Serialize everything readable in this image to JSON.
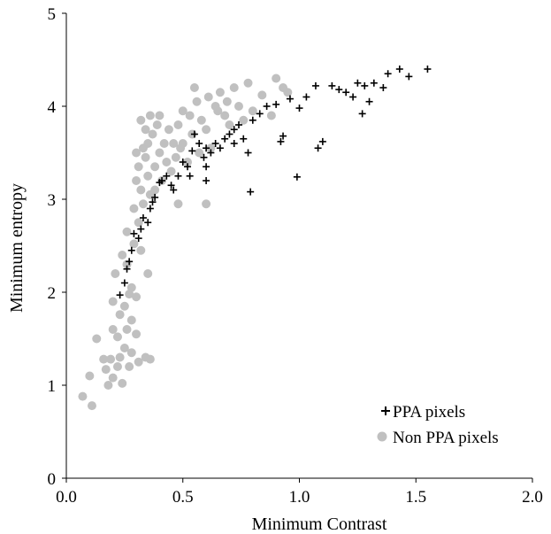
{
  "chart_data": {
    "type": "scatter",
    "title": "",
    "xlabel": "Minimum Contrast",
    "ylabel": "Minimum entropy",
    "xlim": [
      0,
      2
    ],
    "ylim": [
      0,
      5
    ],
    "xticks": [
      "0.0",
      "0.5",
      "1.0",
      "1.5",
      "2.0"
    ],
    "yticks": [
      "0",
      "1",
      "2",
      "3",
      "4",
      "5"
    ],
    "grid": false,
    "legend_position": "bottom-right",
    "series": [
      {
        "name": "Non PPA pixels",
        "marker": "circle",
        "color": "#c0c0c0",
        "points": [
          [
            0.07,
            0.88
          ],
          [
            0.11,
            0.78
          ],
          [
            0.1,
            1.1
          ],
          [
            0.13,
            1.5
          ],
          [
            0.16,
            1.28
          ],
          [
            0.17,
            1.17
          ],
          [
            0.18,
            1.0
          ],
          [
            0.19,
            1.28
          ],
          [
            0.2,
            1.6
          ],
          [
            0.2,
            1.9
          ],
          [
            0.2,
            1.08
          ],
          [
            0.21,
            2.2
          ],
          [
            0.22,
            1.52
          ],
          [
            0.23,
            1.3
          ],
          [
            0.23,
            1.76
          ],
          [
            0.24,
            1.02
          ],
          [
            0.25,
            1.85
          ],
          [
            0.25,
            1.4
          ],
          [
            0.26,
            1.6
          ],
          [
            0.26,
            2.3
          ],
          [
            0.27,
            1.2
          ],
          [
            0.27,
            1.98
          ],
          [
            0.28,
            1.7
          ],
          [
            0.28,
            2.05
          ],
          [
            0.29,
            2.52
          ],
          [
            0.29,
            2.9
          ],
          [
            0.3,
            3.2
          ],
          [
            0.3,
            3.5
          ],
          [
            0.3,
            1.55
          ],
          [
            0.31,
            1.25
          ],
          [
            0.31,
            2.75
          ],
          [
            0.31,
            3.35
          ],
          [
            0.32,
            3.1
          ],
          [
            0.32,
            3.85
          ],
          [
            0.33,
            2.95
          ],
          [
            0.33,
            3.55
          ],
          [
            0.34,
            3.45
          ],
          [
            0.34,
            3.75
          ],
          [
            0.35,
            3.6
          ],
          [
            0.35,
            3.25
          ],
          [
            0.36,
            3.9
          ],
          [
            0.36,
            3.05
          ],
          [
            0.37,
            3.7
          ],
          [
            0.38,
            3.35
          ],
          [
            0.38,
            3.1
          ],
          [
            0.39,
            3.8
          ],
          [
            0.4,
            3.5
          ],
          [
            0.4,
            3.9
          ],
          [
            0.41,
            3.2
          ],
          [
            0.42,
            3.6
          ],
          [
            0.43,
            3.4
          ],
          [
            0.44,
            3.75
          ],
          [
            0.45,
            3.3
          ],
          [
            0.46,
            3.6
          ],
          [
            0.47,
            3.45
          ],
          [
            0.48,
            3.8
          ],
          [
            0.49,
            3.55
          ],
          [
            0.5,
            3.95
          ],
          [
            0.5,
            3.6
          ],
          [
            0.52,
            3.4
          ],
          [
            0.53,
            3.9
          ],
          [
            0.54,
            3.7
          ],
          [
            0.55,
            4.2
          ],
          [
            0.56,
            4.05
          ],
          [
            0.57,
            3.5
          ],
          [
            0.58,
            3.85
          ],
          [
            0.6,
            3.75
          ],
          [
            0.61,
            4.1
          ],
          [
            0.62,
            3.55
          ],
          [
            0.64,
            4.0
          ],
          [
            0.65,
            3.95
          ],
          [
            0.66,
            4.15
          ],
          [
            0.68,
            3.9
          ],
          [
            0.69,
            4.05
          ],
          [
            0.7,
            3.8
          ],
          [
            0.72,
            4.2
          ],
          [
            0.74,
            4.0
          ],
          [
            0.76,
            3.85
          ],
          [
            0.78,
            4.25
          ],
          [
            0.8,
            3.95
          ],
          [
            0.84,
            4.12
          ],
          [
            0.88,
            3.9
          ],
          [
            0.9,
            4.3
          ],
          [
            0.93,
            4.2
          ],
          [
            0.95,
            4.15
          ],
          [
            0.3,
            1.95
          ],
          [
            0.24,
            2.4
          ],
          [
            0.28,
            1.35
          ],
          [
            0.34,
            1.3
          ],
          [
            0.36,
            1.28
          ],
          [
            0.22,
            1.2
          ],
          [
            0.26,
            2.65
          ],
          [
            0.32,
            2.45
          ],
          [
            0.35,
            2.2
          ],
          [
            0.48,
            2.95
          ],
          [
            0.6,
            2.95
          ]
        ]
      },
      {
        "name": "PPA pixels",
        "marker": "plus",
        "color": "#000000",
        "points": [
          [
            0.23,
            1.97
          ],
          [
            0.25,
            2.1
          ],
          [
            0.26,
            2.25
          ],
          [
            0.27,
            2.33
          ],
          [
            0.28,
            2.45
          ],
          [
            0.29,
            2.63
          ],
          [
            0.31,
            2.58
          ],
          [
            0.32,
            2.68
          ],
          [
            0.33,
            2.8
          ],
          [
            0.35,
            2.75
          ],
          [
            0.36,
            2.9
          ],
          [
            0.37,
            2.97
          ],
          [
            0.38,
            3.02
          ],
          [
            0.4,
            3.18
          ],
          [
            0.41,
            3.2
          ],
          [
            0.43,
            3.25
          ],
          [
            0.45,
            3.15
          ],
          [
            0.46,
            3.1
          ],
          [
            0.48,
            3.25
          ],
          [
            0.5,
            3.4
          ],
          [
            0.52,
            3.35
          ],
          [
            0.54,
            3.52
          ],
          [
            0.55,
            3.7
          ],
          [
            0.57,
            3.6
          ],
          [
            0.59,
            3.45
          ],
          [
            0.6,
            3.55
          ],
          [
            0.62,
            3.5
          ],
          [
            0.64,
            3.6
          ],
          [
            0.66,
            3.55
          ],
          [
            0.68,
            3.65
          ],
          [
            0.7,
            3.7
          ],
          [
            0.72,
            3.6
          ],
          [
            0.74,
            3.8
          ],
          [
            0.76,
            3.65
          ],
          [
            0.78,
            3.5
          ],
          [
            0.79,
            3.08
          ],
          [
            0.8,
            3.85
          ],
          [
            0.83,
            3.92
          ],
          [
            0.86,
            4.0
          ],
          [
            0.9,
            4.02
          ],
          [
            0.92,
            3.62
          ],
          [
            0.93,
            3.68
          ],
          [
            0.96,
            4.08
          ],
          [
            0.99,
            3.24
          ],
          [
            1.0,
            3.98
          ],
          [
            1.03,
            4.1
          ],
          [
            1.07,
            4.22
          ],
          [
            1.08,
            3.55
          ],
          [
            1.1,
            3.62
          ],
          [
            1.14,
            4.22
          ],
          [
            1.17,
            4.18
          ],
          [
            1.2,
            4.15
          ],
          [
            1.23,
            4.1
          ],
          [
            1.25,
            4.25
          ],
          [
            1.27,
            3.92
          ],
          [
            1.28,
            4.22
          ],
          [
            1.3,
            4.05
          ],
          [
            1.32,
            4.25
          ],
          [
            1.36,
            4.2
          ],
          [
            1.38,
            4.35
          ],
          [
            1.43,
            4.4
          ],
          [
            1.47,
            4.32
          ],
          [
            1.55,
            4.4
          ],
          [
            0.53,
            3.25
          ],
          [
            0.6,
            3.2
          ],
          [
            0.72,
            3.75
          ],
          [
            0.6,
            3.35
          ]
        ]
      }
    ]
  }
}
